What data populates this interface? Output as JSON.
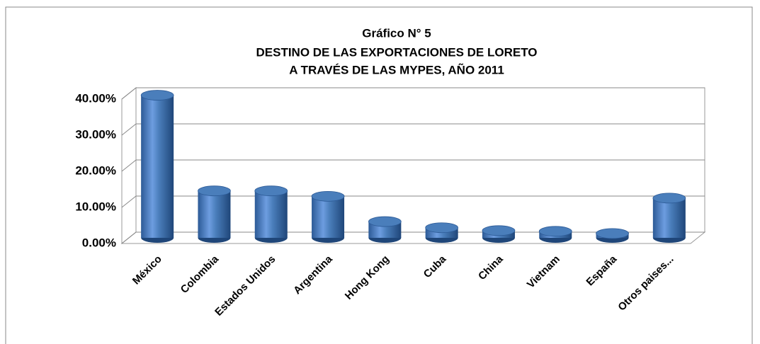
{
  "chart_data": {
    "type": "bar3d",
    "title": [
      "Gráfico N° 5",
      "DESTINO DE LAS EXPORTACIONES DE LORETO",
      "A TRAVÉS DE LAS MYPES, AÑO 2011"
    ],
    "categories": [
      "México",
      "Colombia",
      "Estados Unidos",
      "Argentina",
      "Hong Kong",
      "Cuba",
      "China",
      "Vietnam",
      "España",
      "Otros paises..."
    ],
    "values": [
      39.5,
      13.0,
      13.0,
      11.5,
      4.5,
      2.8,
      2.0,
      1.8,
      1.2,
      11.0
    ],
    "color": "#4a7ebb",
    "ylim": [
      0,
      40
    ],
    "yticks": [
      {
        "value": 0,
        "label": "0.00%"
      },
      {
        "value": 10,
        "label": "10.00%"
      },
      {
        "value": 20,
        "label": "20.00%"
      },
      {
        "value": 30,
        "label": "30.00%"
      },
      {
        "value": 40,
        "label": "40.00%"
      }
    ],
    "grid": true
  }
}
